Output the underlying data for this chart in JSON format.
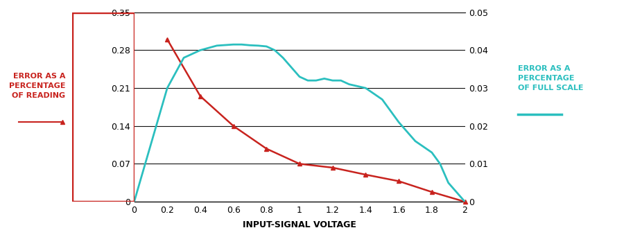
{
  "red_x": [
    0.2,
    0.4,
    0.6,
    0.8,
    1.0,
    1.2,
    1.4,
    1.6,
    1.8,
    2.0
  ],
  "red_y": [
    0.3,
    0.195,
    0.14,
    0.098,
    0.07,
    0.063,
    0.05,
    0.038,
    0.018,
    0.0
  ],
  "teal_x": [
    0.0,
    0.2,
    0.3,
    0.4,
    0.5,
    0.6,
    0.65,
    0.7,
    0.75,
    0.8,
    0.85,
    0.9,
    0.95,
    1.0,
    1.05,
    1.1,
    1.15,
    1.2,
    1.25,
    1.3,
    1.4,
    1.5,
    1.6,
    1.7,
    1.8,
    1.85,
    1.9,
    2.0
  ],
  "teal_y": [
    0.0,
    0.03,
    0.038,
    0.04,
    0.0412,
    0.0415,
    0.0415,
    0.0413,
    0.0412,
    0.041,
    0.04,
    0.038,
    0.0355,
    0.033,
    0.032,
    0.032,
    0.0325,
    0.032,
    0.032,
    0.031,
    0.03,
    0.027,
    0.021,
    0.016,
    0.013,
    0.01,
    0.005,
    0.0
  ],
  "left_ylim": [
    0,
    0.35
  ],
  "right_ylim": [
    0,
    0.05
  ],
  "left_yticks": [
    0,
    0.07,
    0.14,
    0.21,
    0.28,
    0.35
  ],
  "right_yticks": [
    0,
    0.01,
    0.02,
    0.03,
    0.04,
    0.05
  ],
  "xticks": [
    0,
    0.2,
    0.4,
    0.6,
    0.8,
    1.0,
    1.2,
    1.4,
    1.6,
    1.8,
    2.0
  ],
  "xlim": [
    0,
    2.0
  ],
  "xlabel": "INPUT-SIGNAL VOLTAGE",
  "left_label_lines": [
    "ERROR AS A",
    "PERCENTAGE",
    "OF READING"
  ],
  "right_label_lines": [
    "ERROR AS A",
    "PERCENTAGE",
    "OF FULL SCALE"
  ],
  "red_color": "#C8231E",
  "teal_color": "#2BBFBF",
  "box_color": "#C8231E",
  "grid_color": "#111111",
  "bg_color": "#ffffff",
  "xlabel_color": "#000000",
  "left_label_color": "#C8231E",
  "right_label_color": "#2BBFBF"
}
